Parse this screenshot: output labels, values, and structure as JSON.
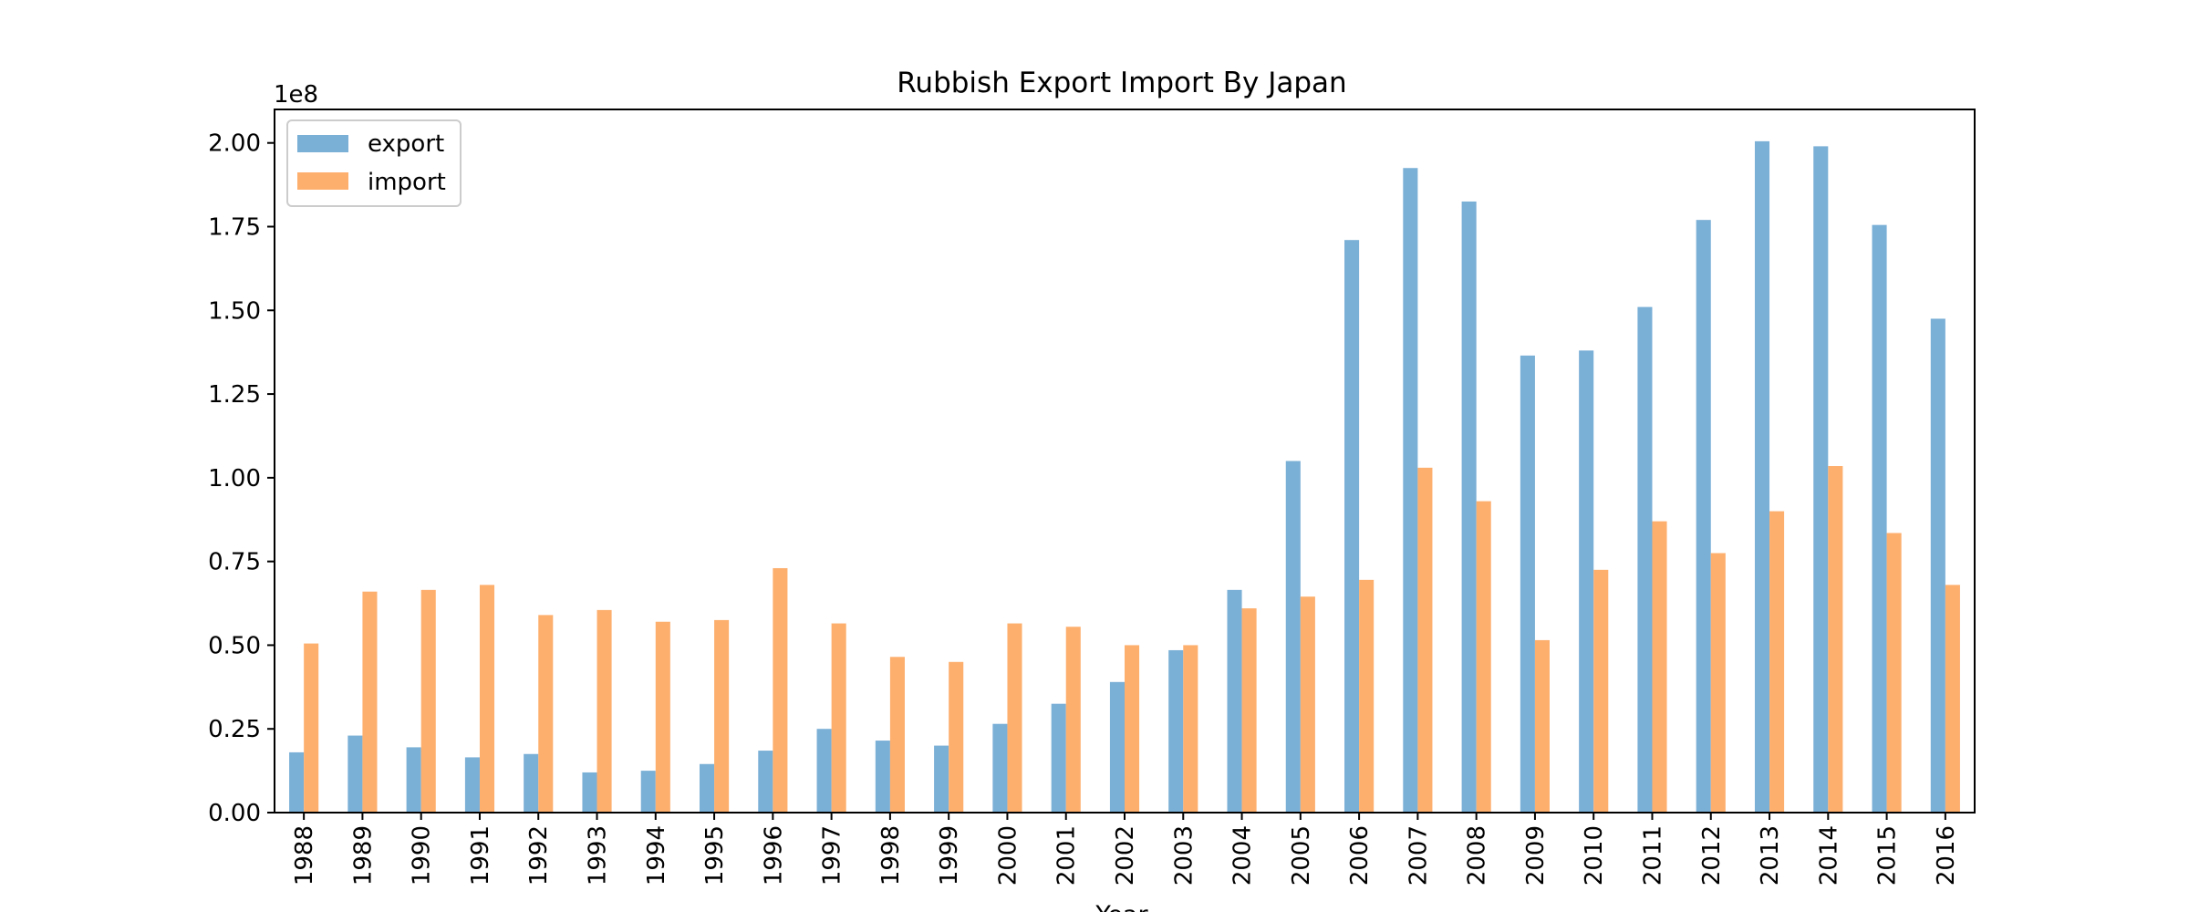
{
  "chart_data": {
    "type": "bar",
    "title": "Rubbish Export Import By Japan",
    "xlabel": "Year",
    "ylabel": "",
    "offset_label": "1e8",
    "ylim": [
      0,
      210000000
    ],
    "yticks": [
      0,
      25000000,
      50000000,
      75000000,
      100000000,
      125000000,
      150000000,
      175000000,
      200000000
    ],
    "ytick_labels": [
      "0.00",
      "0.25",
      "0.50",
      "0.75",
      "1.00",
      "1.25",
      "1.50",
      "1.75",
      "2.00"
    ],
    "legend_position": "top-left",
    "grid": false,
    "categories": [
      "1988",
      "1989",
      "1990",
      "1991",
      "1992",
      "1993",
      "1994",
      "1995",
      "1996",
      "1997",
      "1998",
      "1999",
      "2000",
      "2001",
      "2002",
      "2003",
      "2004",
      "2005",
      "2006",
      "2007",
      "2008",
      "2009",
      "2010",
      "2011",
      "2012",
      "2013",
      "2014",
      "2015",
      "2016"
    ],
    "series": [
      {
        "name": "export",
        "color": "#7aafd6",
        "values": [
          18000000,
          23000000,
          19500000,
          16500000,
          17500000,
          12000000,
          12500000,
          14500000,
          18500000,
          25000000,
          21500000,
          20000000,
          26500000,
          32500000,
          39000000,
          48500000,
          66500000,
          105000000,
          171000000,
          192500000,
          182500000,
          136500000,
          138000000,
          151000000,
          177000000,
          200500000,
          199000000,
          175500000,
          147500000
        ]
      },
      {
        "name": "import",
        "color": "#fdaf6e",
        "values": [
          50500000,
          66000000,
          66500000,
          68000000,
          59000000,
          60500000,
          57000000,
          57500000,
          73000000,
          56500000,
          46500000,
          45000000,
          56500000,
          55500000,
          50000000,
          50000000,
          61000000,
          64500000,
          69500000,
          103000000,
          93000000,
          51500000,
          72500000,
          87000000,
          77500000,
          90000000,
          103500000,
          83500000,
          68000000
        ]
      }
    ]
  }
}
